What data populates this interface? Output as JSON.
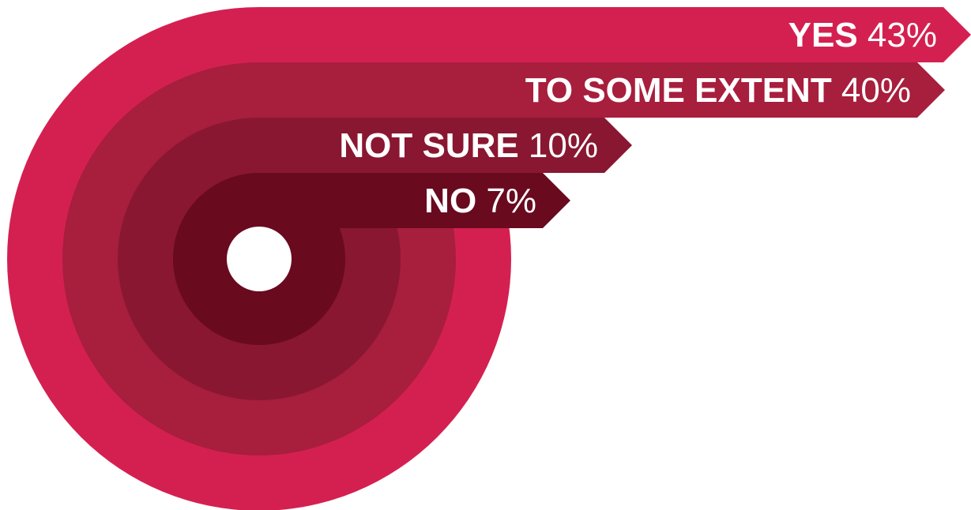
{
  "chart_data": {
    "type": "radial-bar",
    "title": "",
    "categories": [
      "YES",
      "TO SOME EXTENT",
      "NOT SURE",
      "NO"
    ],
    "values": [
      43,
      40,
      10,
      7
    ],
    "value_labels": [
      "43%",
      "40%",
      "10%",
      "7%"
    ],
    "colors": [
      "#d42050",
      "#a81e3d",
      "#891731",
      "#690a1f"
    ],
    "center_color": "#ffffff",
    "legend": "none",
    "grid": false
  }
}
